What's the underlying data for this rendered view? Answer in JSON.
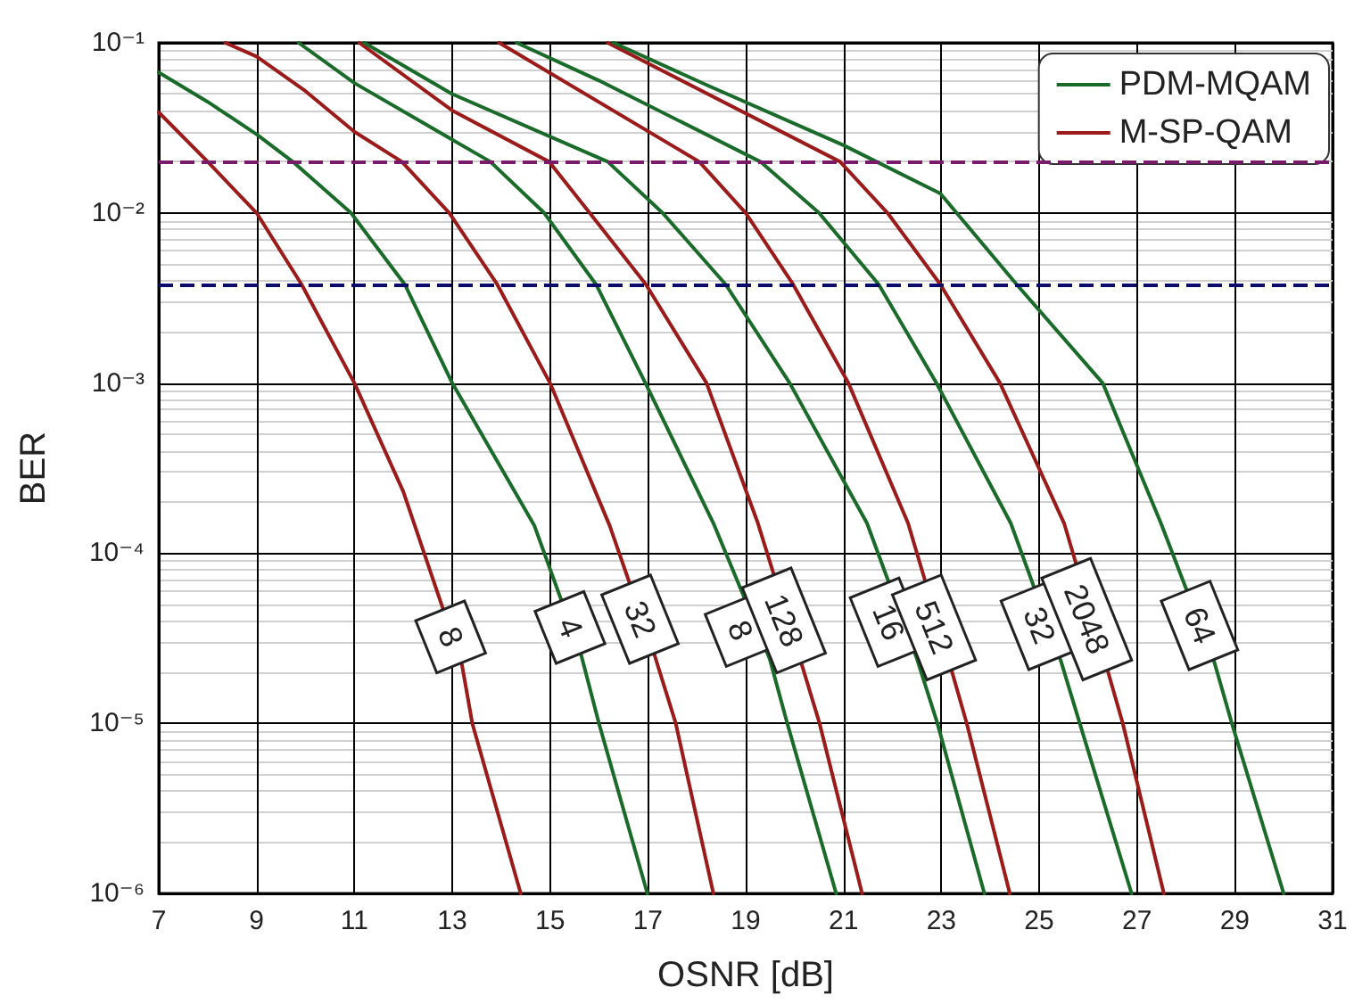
{
  "chart_data": {
    "type": "line",
    "xlabel": "OSNR [dB]",
    "ylabel": "BER",
    "xlim": [
      7,
      31
    ],
    "xticks": [
      7,
      9,
      11,
      13,
      15,
      17,
      19,
      21,
      23,
      25,
      27,
      29,
      31
    ],
    "ylim": [
      1e-06,
      0.1
    ],
    "yticks": [
      {
        "value": 1e-06,
        "label": "10⁻⁶"
      },
      {
        "value": 1e-05,
        "label": "10⁻⁵"
      },
      {
        "value": 0.0001,
        "label": "10⁻⁴"
      },
      {
        "value": 0.001,
        "label": "10⁻³"
      },
      {
        "value": 0.01,
        "label": "10⁻²"
      },
      {
        "value": 0.1,
        "label": "10⁻¹"
      }
    ],
    "log": "y",
    "grid": true,
    "legend": "top right",
    "marker": "none",
    "line_style": "solid",
    "series": [
      {
        "name": "PDM-MQAM",
        "color": "#1a6b2a",
        "x": [
          7,
          8,
          9,
          9.74,
          10.93,
          12.03,
          13,
          14.68,
          15.64,
          16,
          16.99
        ],
        "values": [
          0.067,
          0.045,
          0.029,
          0.02,
          0.01,
          0.0038,
          0.001,
          0.000145,
          2.5e-05,
          1e-05,
          1e-06
        ]
      },
      {
        "name": "M-SP-QAM",
        "color": "#9b1b1b",
        "x": [
          7,
          8,
          9,
          9.92,
          11,
          12,
          13.2,
          13.41,
          14.4
        ],
        "values": [
          0.039,
          0.02,
          0.01,
          0.0038,
          0.001,
          0.00023,
          2.2e-05,
          1e-05,
          1e-06
        ]
      },
      {
        "color": "#9b1b1b",
        "x": [
          8.36,
          9,
          10,
          11,
          11.97,
          12.94,
          13.92,
          15,
          16.22,
          17.14,
          17.57,
          18.34
        ],
        "values": [
          0.1,
          0.083,
          0.052,
          0.03,
          0.02,
          0.01,
          0.0038,
          0.001,
          0.000145,
          2.5e-05,
          1e-05,
          1e-06
        ]
      },
      {
        "color": "#1a6b2a",
        "x": [
          9.86,
          11,
          13.78,
          14.88,
          15.94,
          16.95,
          18.34,
          19.49,
          19.85,
          20.85
        ],
        "values": [
          0.1,
          0.058,
          0.02,
          0.01,
          0.0038,
          0.001,
          0.00015,
          2.4e-05,
          1e-05,
          1e-06
        ]
      },
      {
        "color": "#9b1b1b",
        "x": [
          11.1,
          13,
          14.98,
          15.81,
          16.96,
          18.2,
          19.25,
          20.15,
          20.51,
          21.38
        ],
        "values": [
          0.1,
          0.04,
          0.02,
          0.01,
          0.0038,
          0.001,
          0.00015,
          2.2e-05,
          1e-05,
          1e-06
        ]
      },
      {
        "color": "#1a6b2a",
        "x": [
          11.2,
          13,
          16.18,
          17.3,
          18.59,
          19.9,
          21.48,
          22.5,
          22.92,
          23.88
        ],
        "values": [
          0.1,
          0.05,
          0.02,
          0.01,
          0.0038,
          0.001,
          0.00015,
          2.4e-05,
          1e-05,
          1e-06
        ]
      },
      {
        "color": "#9b1b1b",
        "x": [
          13.96,
          18.05,
          19,
          19.97,
          21.1,
          22.32,
          23.22,
          23.52,
          24.4
        ],
        "values": [
          0.1,
          0.02,
          0.01,
          0.0038,
          0.001,
          0.00015,
          2e-05,
          1e-05,
          1e-06
        ]
      },
      {
        "color": "#1a6b2a",
        "x": [
          14.32,
          16,
          19.3,
          20.5,
          21.72,
          22.9,
          24.42,
          25.45,
          25.83,
          26.89
        ],
        "values": [
          0.1,
          0.06,
          0.02,
          0.01,
          0.0038,
          0.001,
          0.00015,
          2.3e-05,
          1e-05,
          1e-06
        ]
      },
      {
        "color": "#9b1b1b",
        "x": [
          16.18,
          20.93,
          21.9,
          22.98,
          24.2,
          25.51,
          26.41,
          26.71,
          27.55
        ],
        "values": [
          0.1,
          0.02,
          0.01,
          0.0038,
          0.001,
          0.00015,
          2e-05,
          1e-05,
          1e-06
        ]
      },
      {
        "color": "#1a6b2a",
        "x": [
          16.3,
          18.23,
          21,
          22.98,
          24.54,
          26.3,
          27.49,
          28.58,
          28.94,
          30
        ],
        "values": [
          0.1,
          0.056,
          0.025,
          0.013,
          0.0038,
          0.001,
          0.00015,
          2.3e-05,
          1e-05,
          1e-06
        ]
      }
    ],
    "ref_lines": [
      {
        "axis": "y",
        "value": 0.02,
        "color": "#7a1a6b",
        "line_style": "dashed"
      },
      {
        "axis": "y",
        "value": 0.0038,
        "color": "#0b0b6b",
        "line_style": "dashed"
      }
    ],
    "annotations": [
      {
        "text": "8",
        "x": 13.2,
        "y": 2.2e-05
      },
      {
        "text": "4",
        "x": 15.64,
        "y": 2.5e-05
      },
      {
        "text": "32",
        "x": 17.14,
        "y": 2.5e-05
      },
      {
        "text": "8",
        "x": 19.49,
        "y": 2.4e-05
      },
      {
        "text": "128",
        "x": 20.15,
        "y": 2.2e-05
      },
      {
        "text": "16",
        "x": 22.5,
        "y": 2.4e-05
      },
      {
        "text": "512",
        "x": 23.22,
        "y": 2e-05
      },
      {
        "text": "32",
        "x": 25.45,
        "y": 2.3e-05
      },
      {
        "text": "2048",
        "x": 26.41,
        "y": 2e-05
      },
      {
        "text": "64",
        "x": 28.58,
        "y": 2.3e-05
      }
    ]
  }
}
